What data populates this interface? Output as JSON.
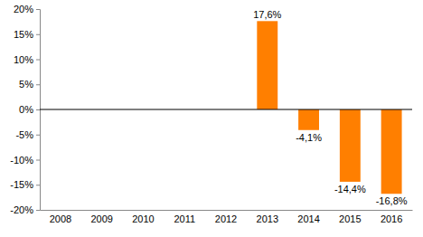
{
  "chart_data": {
    "type": "bar",
    "categories": [
      "2008",
      "2009",
      "2010",
      "2011",
      "2012",
      "2013",
      "2014",
      "2015",
      "2016"
    ],
    "values": [
      null,
      null,
      null,
      null,
      null,
      17.6,
      -4.1,
      -14.4,
      -16.8
    ],
    "value_labels": [
      null,
      null,
      null,
      null,
      null,
      "17,6%",
      "-4,1%",
      "-14,4%",
      "-16,8%"
    ],
    "color": "#ff7f00",
    "ylim": [
      -20,
      20
    ],
    "yticks": [
      {
        "value": 20,
        "label": "20%"
      },
      {
        "value": 15,
        "label": "15%"
      },
      {
        "value": 10,
        "label": "10%"
      },
      {
        "value": 5,
        "label": "5%"
      },
      {
        "value": 0,
        "label": "0%"
      },
      {
        "value": -5,
        "label": "-5%"
      },
      {
        "value": -10,
        "label": "-10%"
      },
      {
        "value": -15,
        "label": "-15%"
      },
      {
        "value": -20,
        "label": "-20%"
      }
    ],
    "grid": false,
    "data_labels": true
  }
}
